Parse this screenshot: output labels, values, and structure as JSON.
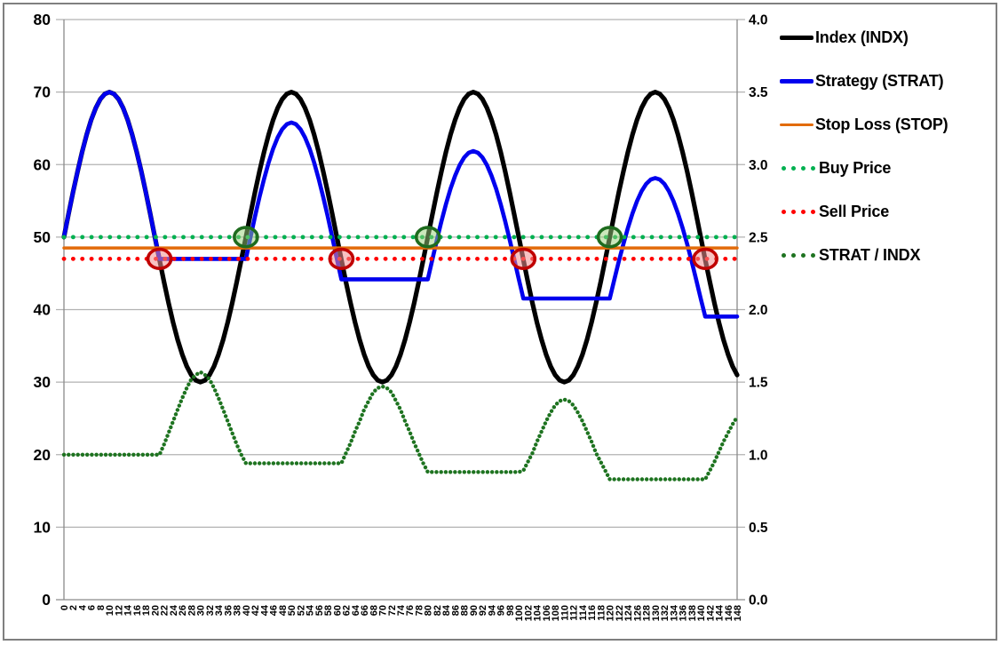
{
  "figure": {
    "background": "#ffffff",
    "border_color": "#7f7f7f"
  },
  "legend": {
    "items": [
      {
        "label": "Index (INDX)",
        "swatch": "line",
        "color": "#000000",
        "thickness": 5
      },
      {
        "label": "Strategy (STRAT)",
        "swatch": "line",
        "color": "#0000ee",
        "thickness": 5
      },
      {
        "label": "Stop Loss (STOP)",
        "swatch": "line",
        "color": "#e26b0a",
        "thickness": 3
      },
      {
        "label": "Buy Price",
        "swatch": "dots",
        "color": "#00b050",
        "thickness": 5
      },
      {
        "label": "Sell Price",
        "swatch": "dots",
        "color": "#ff0000",
        "thickness": 5
      },
      {
        "label": "STRAT / INDX",
        "swatch": "dots",
        "color": "#1e7320",
        "thickness": 5
      }
    ]
  },
  "chart_data": {
    "type": "line",
    "title": "",
    "x": {
      "min": 0,
      "max": 148,
      "step": 1,
      "tick_step": 2,
      "tick_labels": [
        "0",
        "2",
        "4",
        "6",
        "8",
        "10",
        "12",
        "14",
        "16",
        "18",
        "20",
        "22",
        "24",
        "26",
        "28",
        "30",
        "32",
        "34",
        "36",
        "38",
        "40",
        "42",
        "44",
        "46",
        "48",
        "50",
        "52",
        "54",
        "56",
        "58",
        "60",
        "62",
        "64",
        "66",
        "68",
        "70",
        "72",
        "74",
        "76",
        "78",
        "80",
        "82",
        "84",
        "86",
        "88",
        "90",
        "92",
        "94",
        "96",
        "98",
        "100",
        "102",
        "104",
        "106",
        "108",
        "110",
        "112",
        "114",
        "116",
        "118",
        "120",
        "122",
        "124",
        "126",
        "128",
        "130",
        "132",
        "134",
        "136",
        "138",
        "140",
        "142",
        "144",
        "146",
        "148"
      ]
    },
    "left_axis": {
      "min": 0,
      "max": 80,
      "tick_labels": [
        "0",
        "10",
        "20",
        "30",
        "40",
        "50",
        "60",
        "70",
        "80"
      ]
    },
    "right_axis": {
      "min": 0,
      "max": 4,
      "tick_labels": [
        "0.0",
        "0.5",
        "1.0",
        "1.5",
        "2.0",
        "2.5",
        "3.0",
        "3.5",
        "4.0"
      ]
    },
    "grid": true,
    "grid_color": "#b2b2b2",
    "axis_color": "#8a8a8a",
    "label_color": "#000000",
    "legend_position": "right",
    "series": [
      {
        "id": "index",
        "name": "Index (INDX)",
        "axis": "left",
        "style": "solid",
        "color": "#000000",
        "width": 5.2,
        "values": [
          50,
          53.13,
          56.18,
          59.08,
          61.76,
          64.14,
          66.18,
          67.82,
          69.02,
          69.75,
          70,
          69.75,
          69.02,
          67.82,
          66.18,
          64.14,
          61.76,
          59.08,
          56.18,
          53.13,
          50,
          46.87,
          43.82,
          40.92,
          38.24,
          35.86,
          33.82,
          32.18,
          30.98,
          30.25,
          30,
          30.25,
          30.98,
          32.18,
          33.82,
          35.86,
          38.24,
          40.92,
          43.82,
          46.87,
          50,
          53.13,
          56.18,
          59.08,
          61.76,
          64.14,
          66.18,
          67.82,
          69.02,
          69.75,
          70,
          69.75,
          69.02,
          67.82,
          66.18,
          64.14,
          61.76,
          59.08,
          56.18,
          53.13,
          50,
          46.87,
          43.82,
          40.92,
          38.24,
          35.86,
          33.82,
          32.18,
          30.98,
          30.25,
          30,
          30.25,
          30.98,
          32.18,
          33.82,
          35.86,
          38.24,
          40.92,
          43.82,
          46.87,
          50,
          53.13,
          56.18,
          59.08,
          61.76,
          64.14,
          66.18,
          67.82,
          69.02,
          69.75,
          70,
          69.75,
          69.02,
          67.82,
          66.18,
          64.14,
          61.76,
          59.08,
          56.18,
          53.13,
          50,
          46.87,
          43.82,
          40.92,
          38.24,
          35.86,
          33.82,
          32.18,
          30.98,
          30.25,
          30,
          30.25,
          30.98,
          32.18,
          33.82,
          35.86,
          38.24,
          40.92,
          43.82,
          46.87,
          50,
          53.13,
          56.18,
          59.08,
          61.76,
          64.14,
          66.18,
          67.82,
          69.02,
          69.75,
          70,
          69.75,
          69.02,
          67.82,
          66.18,
          64.14,
          61.76,
          59.08,
          56.18,
          53.13,
          50,
          46.87,
          43.82,
          40.92,
          38.24,
          35.86,
          33.82,
          32.18,
          30.98
        ]
      },
      {
        "id": "strategy",
        "name": "Strategy (STRAT)",
        "axis": "left",
        "style": "solid",
        "color": "#0000ee",
        "width": 4.6,
        "values": [
          50,
          53.13,
          56.18,
          59.08,
          61.76,
          64.14,
          66.18,
          67.82,
          69.02,
          69.75,
          70,
          69.75,
          69.02,
          67.82,
          66.18,
          64.14,
          61.76,
          59.08,
          56.18,
          53.13,
          50,
          47,
          47,
          47,
          47,
          47,
          47,
          47,
          47,
          47,
          47,
          47,
          47,
          47,
          47,
          47,
          47,
          47,
          47,
          47,
          47,
          49.94,
          52.81,
          55.53,
          58.05,
          60.29,
          62.21,
          63.75,
          64.88,
          65.57,
          65.8,
          65.57,
          64.88,
          63.75,
          62.21,
          60.29,
          58.05,
          55.53,
          52.81,
          49.94,
          47,
          44.18,
          44.18,
          44.18,
          44.18,
          44.18,
          44.18,
          44.18,
          44.18,
          44.18,
          44.18,
          44.18,
          44.18,
          44.18,
          44.18,
          44.18,
          44.18,
          44.18,
          44.18,
          44.18,
          44.18,
          46.95,
          49.64,
          52.2,
          54.57,
          56.67,
          58.48,
          59.93,
          60.99,
          61.64,
          61.85,
          61.64,
          60.99,
          59.93,
          58.48,
          56.67,
          54.57,
          52.2,
          49.64,
          46.95,
          44.18,
          41.53,
          41.53,
          41.53,
          41.53,
          41.53,
          41.53,
          41.53,
          41.53,
          41.53,
          41.53,
          41.53,
          41.53,
          41.53,
          41.53,
          41.53,
          41.53,
          41.53,
          41.53,
          41.53,
          41.53,
          44.13,
          46.66,
          49.07,
          51.3,
          53.27,
          54.97,
          56.33,
          57.33,
          57.93,
          58.14,
          57.93,
          57.33,
          56.33,
          54.97,
          53.27,
          51.3,
          49.07,
          46.66,
          44.13,
          41.53,
          39.04,
          39.04,
          39.04,
          39.04,
          39.04,
          39.04,
          39.04,
          39.04
        ]
      },
      {
        "id": "stop_loss",
        "name": "Stop Loss (STOP)",
        "axis": "left",
        "style": "solid",
        "color": "#e26b0a",
        "width": 3.4,
        "constant": 48.5
      },
      {
        "id": "buy_price",
        "name": "Buy Price",
        "axis": "left",
        "style": "dotted",
        "color": "#00b050",
        "width": 4.8,
        "dot_gap_units": 2,
        "constant": 50
      },
      {
        "id": "sell_price",
        "name": "Sell Price",
        "axis": "left",
        "style": "dotted",
        "color": "#ff0000",
        "width": 4.8,
        "dot_gap_units": 2,
        "constant": 47
      },
      {
        "id": "ratio",
        "name": "STRAT / INDX",
        "axis": "right",
        "style": "dotted",
        "color": "#1e7320",
        "width": 4.4,
        "dot_gap_units": 1,
        "values": [
          1,
          1,
          1,
          1,
          1,
          1,
          1,
          1,
          1,
          1,
          1,
          1,
          1,
          1,
          1,
          1,
          1,
          1,
          1,
          1,
          1,
          1,
          1.07,
          1.15,
          1.23,
          1.31,
          1.39,
          1.46,
          1.52,
          1.55,
          1.57,
          1.55,
          1.52,
          1.46,
          1.39,
          1.31,
          1.23,
          1.15,
          1.07,
          1,
          0.94,
          0.94,
          0.94,
          0.94,
          0.94,
          0.94,
          0.94,
          0.94,
          0.94,
          0.94,
          0.94,
          0.94,
          0.94,
          0.94,
          0.94,
          0.94,
          0.94,
          0.94,
          0.94,
          0.94,
          0.94,
          0.94,
          1.01,
          1.08,
          1.16,
          1.23,
          1.31,
          1.37,
          1.43,
          1.46,
          1.47,
          1.46,
          1.43,
          1.37,
          1.31,
          1.23,
          1.16,
          1.08,
          1.01,
          0.94,
          0.88,
          0.88,
          0.88,
          0.88,
          0.88,
          0.88,
          0.88,
          0.88,
          0.88,
          0.88,
          0.88,
          0.88,
          0.88,
          0.88,
          0.88,
          0.88,
          0.88,
          0.88,
          0.88,
          0.88,
          0.88,
          0.89,
          0.95,
          1.01,
          1.09,
          1.16,
          1.23,
          1.29,
          1.34,
          1.37,
          1.38,
          1.37,
          1.34,
          1.29,
          1.23,
          1.16,
          1.09,
          1.01,
          0.95,
          0.89,
          0.83,
          0.83,
          0.83,
          0.83,
          0.83,
          0.83,
          0.83,
          0.83,
          0.83,
          0.83,
          0.83,
          0.83,
          0.83,
          0.83,
          0.83,
          0.83,
          0.83,
          0.83,
          0.83,
          0.83,
          0.83,
          0.83,
          0.89,
          0.95,
          1.02,
          1.09,
          1.15,
          1.21,
          1.26
        ]
      }
    ],
    "markers": {
      "buy": {
        "name": "buy-signal",
        "ring_color": "#1e6c1e",
        "fill_color": "rgba(151,208,119,0.5)",
        "points": [
          {
            "x": 40,
            "y": 50
          },
          {
            "x": 80,
            "y": 50
          },
          {
            "x": 120,
            "y": 50
          }
        ]
      },
      "sell": {
        "name": "sell-signal",
        "ring_color": "#c00000",
        "fill_color": "rgba(242,143,143,0.55)",
        "points": [
          {
            "x": 21,
            "y": 47
          },
          {
            "x": 61,
            "y": 47
          },
          {
            "x": 101,
            "y": 47
          },
          {
            "x": 141,
            "y": 47
          }
        ]
      }
    }
  }
}
